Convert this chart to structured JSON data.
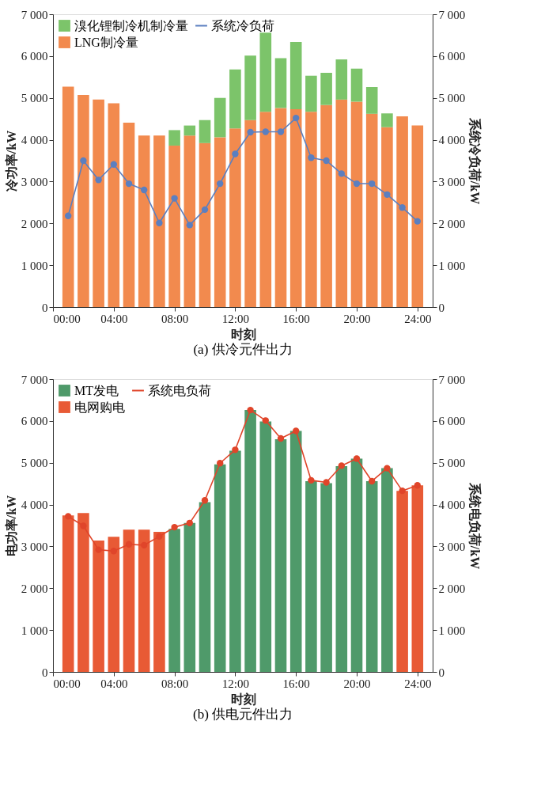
{
  "chart_data": [
    {
      "type": "bar",
      "title": "(a) 供冷元件出力",
      "xlabel": "时刻",
      "ylabel": "冷功率/kW",
      "y2label": "系统冷负荷/kW",
      "stacked": true,
      "grid": false,
      "legend": "top left",
      "x": [
        1,
        2,
        3,
        4,
        5,
        6,
        7,
        8,
        9,
        10,
        11,
        12,
        13,
        14,
        15,
        16,
        17,
        18,
        19,
        20,
        21,
        22,
        23,
        24
      ],
      "xlim": [
        0,
        25
      ],
      "xticks": [
        {
          "value": 0,
          "label": "00:00"
        },
        {
          "value": 4,
          "label": "04:00"
        },
        {
          "value": 8,
          "label": "08:00"
        },
        {
          "value": 12,
          "label": "12:00"
        },
        {
          "value": 16,
          "label": "16:00"
        },
        {
          "value": 20,
          "label": "20:00"
        },
        {
          "value": 24,
          "label": "24:00"
        }
      ],
      "ylim": [
        0,
        7000
      ],
      "yticks": [
        0,
        {
          "value": 1000,
          "label": "1 000"
        },
        {
          "value": 2000,
          "label": "2 000"
        },
        {
          "value": 3000,
          "label": "3 000"
        },
        {
          "value": 4000,
          "label": "4 000"
        },
        {
          "value": 5000,
          "label": "5 000"
        },
        {
          "value": 6000,
          "label": "6 000"
        },
        {
          "value": 7000,
          "label": "7 000"
        }
      ],
      "y2lim": [
        0,
        7000
      ],
      "y2ticks": [
        0,
        {
          "value": 1000,
          "label": "1 000"
        },
        {
          "value": 2000,
          "label": "2 000"
        },
        {
          "value": 3000,
          "label": "3 000"
        },
        {
          "value": 4000,
          "label": "4 000"
        },
        {
          "value": 5000,
          "label": "5 000"
        },
        {
          "value": 6000,
          "label": "6 000"
        },
        {
          "value": 7000,
          "label": "7 000"
        }
      ],
      "series": [
        {
          "name": "LNG制冷量",
          "color": "#f28a4e",
          "values": [
            5270,
            5070,
            4960,
            4870,
            4410,
            4100,
            4100,
            3860,
            4100,
            3920,
            4060,
            4270,
            4470,
            4670,
            4760,
            4730,
            4670,
            4830,
            4960,
            4910,
            4620,
            4300,
            4560,
            4340
          ]
        },
        {
          "name": "溴化锂制冷机制冷量",
          "color": "#7cc46a",
          "values": [
            null,
            null,
            null,
            null,
            null,
            null,
            null,
            370,
            240,
            550,
            940,
            1410,
            1540,
            1890,
            1190,
            1610,
            860,
            770,
            960,
            790,
            640,
            330,
            null,
            null
          ]
        },
        {
          "name": "系统冷负荷",
          "type": "line",
          "axis": "y2",
          "marker": "circle",
          "line_style": "solid",
          "color": "#5b7fc0",
          "values": [
            2180,
            3500,
            3040,
            3410,
            2950,
            2800,
            2010,
            2600,
            1960,
            2330,
            2950,
            3660,
            4180,
            4190,
            4190,
            4520,
            3570,
            3500,
            3190,
            2950,
            2950,
            2690,
            2380,
            2050
          ]
        }
      ]
    },
    {
      "type": "bar",
      "title": "(b) 供电元件出力",
      "xlabel": "时刻",
      "ylabel": "电功率/kW",
      "y2label": "系统电负荷/kW",
      "stacked": true,
      "grid": false,
      "legend": "top left",
      "x": [
        1,
        2,
        3,
        4,
        5,
        6,
        7,
        8,
        9,
        10,
        11,
        12,
        13,
        14,
        15,
        16,
        17,
        18,
        19,
        20,
        21,
        22,
        23,
        24
      ],
      "xlim": [
        0,
        25
      ],
      "xticks": [
        {
          "value": 0,
          "label": "00:00"
        },
        {
          "value": 4,
          "label": "04:00"
        },
        {
          "value": 8,
          "label": "08:00"
        },
        {
          "value": 12,
          "label": "12:00"
        },
        {
          "value": 16,
          "label": "16:00"
        },
        {
          "value": 20,
          "label": "20:00"
        },
        {
          "value": 24,
          "label": "24:00"
        }
      ],
      "ylim": [
        0,
        7000
      ],
      "yticks": [
        0,
        {
          "value": 1000,
          "label": "1 000"
        },
        {
          "value": 2000,
          "label": "2 000"
        },
        {
          "value": 3000,
          "label": "3 000"
        },
        {
          "value": 4000,
          "label": "4 000"
        },
        {
          "value": 5000,
          "label": "5 000"
        },
        {
          "value": 6000,
          "label": "6 000"
        },
        {
          "value": 7000,
          "label": "7 000"
        }
      ],
      "y2lim": [
        0,
        7000
      ],
      "y2ticks": [
        0,
        {
          "value": 1000,
          "label": "1 000"
        },
        {
          "value": 2000,
          "label": "2 000"
        },
        {
          "value": 3000,
          "label": "3 000"
        },
        {
          "value": 4000,
          "label": "4 000"
        },
        {
          "value": 5000,
          "label": "5 000"
        },
        {
          "value": 6000,
          "label": "6 000"
        },
        {
          "value": 7000,
          "label": "7 000"
        }
      ],
      "series": [
        {
          "name": "电网购电",
          "color": "#e85a35",
          "values": [
            3740,
            3800,
            3140,
            3230,
            3400,
            3400,
            3350,
            null,
            null,
            null,
            null,
            null,
            null,
            null,
            null,
            null,
            null,
            null,
            null,
            null,
            null,
            null,
            4330,
            4460
          ]
        },
        {
          "name": "MT发电",
          "color": "#4f9a6a",
          "values": [
            null,
            null,
            null,
            null,
            null,
            null,
            null,
            3420,
            3560,
            4060,
            4960,
            5290,
            6260,
            5990,
            5560,
            5760,
            4560,
            4510,
            4920,
            5100,
            4560,
            4870,
            null,
            null
          ]
        },
        {
          "name": "系统电负荷",
          "type": "line",
          "axis": "y2",
          "marker": "circle",
          "line_style": "solid",
          "color": "#e0452a",
          "values": [
            3720,
            3490,
            2920,
            2890,
            3050,
            3030,
            3240,
            3460,
            3560,
            4100,
            4990,
            5310,
            6260,
            6010,
            5580,
            5760,
            4580,
            4530,
            4930,
            5100,
            4560,
            4870,
            4330,
            4460
          ]
        }
      ]
    }
  ]
}
